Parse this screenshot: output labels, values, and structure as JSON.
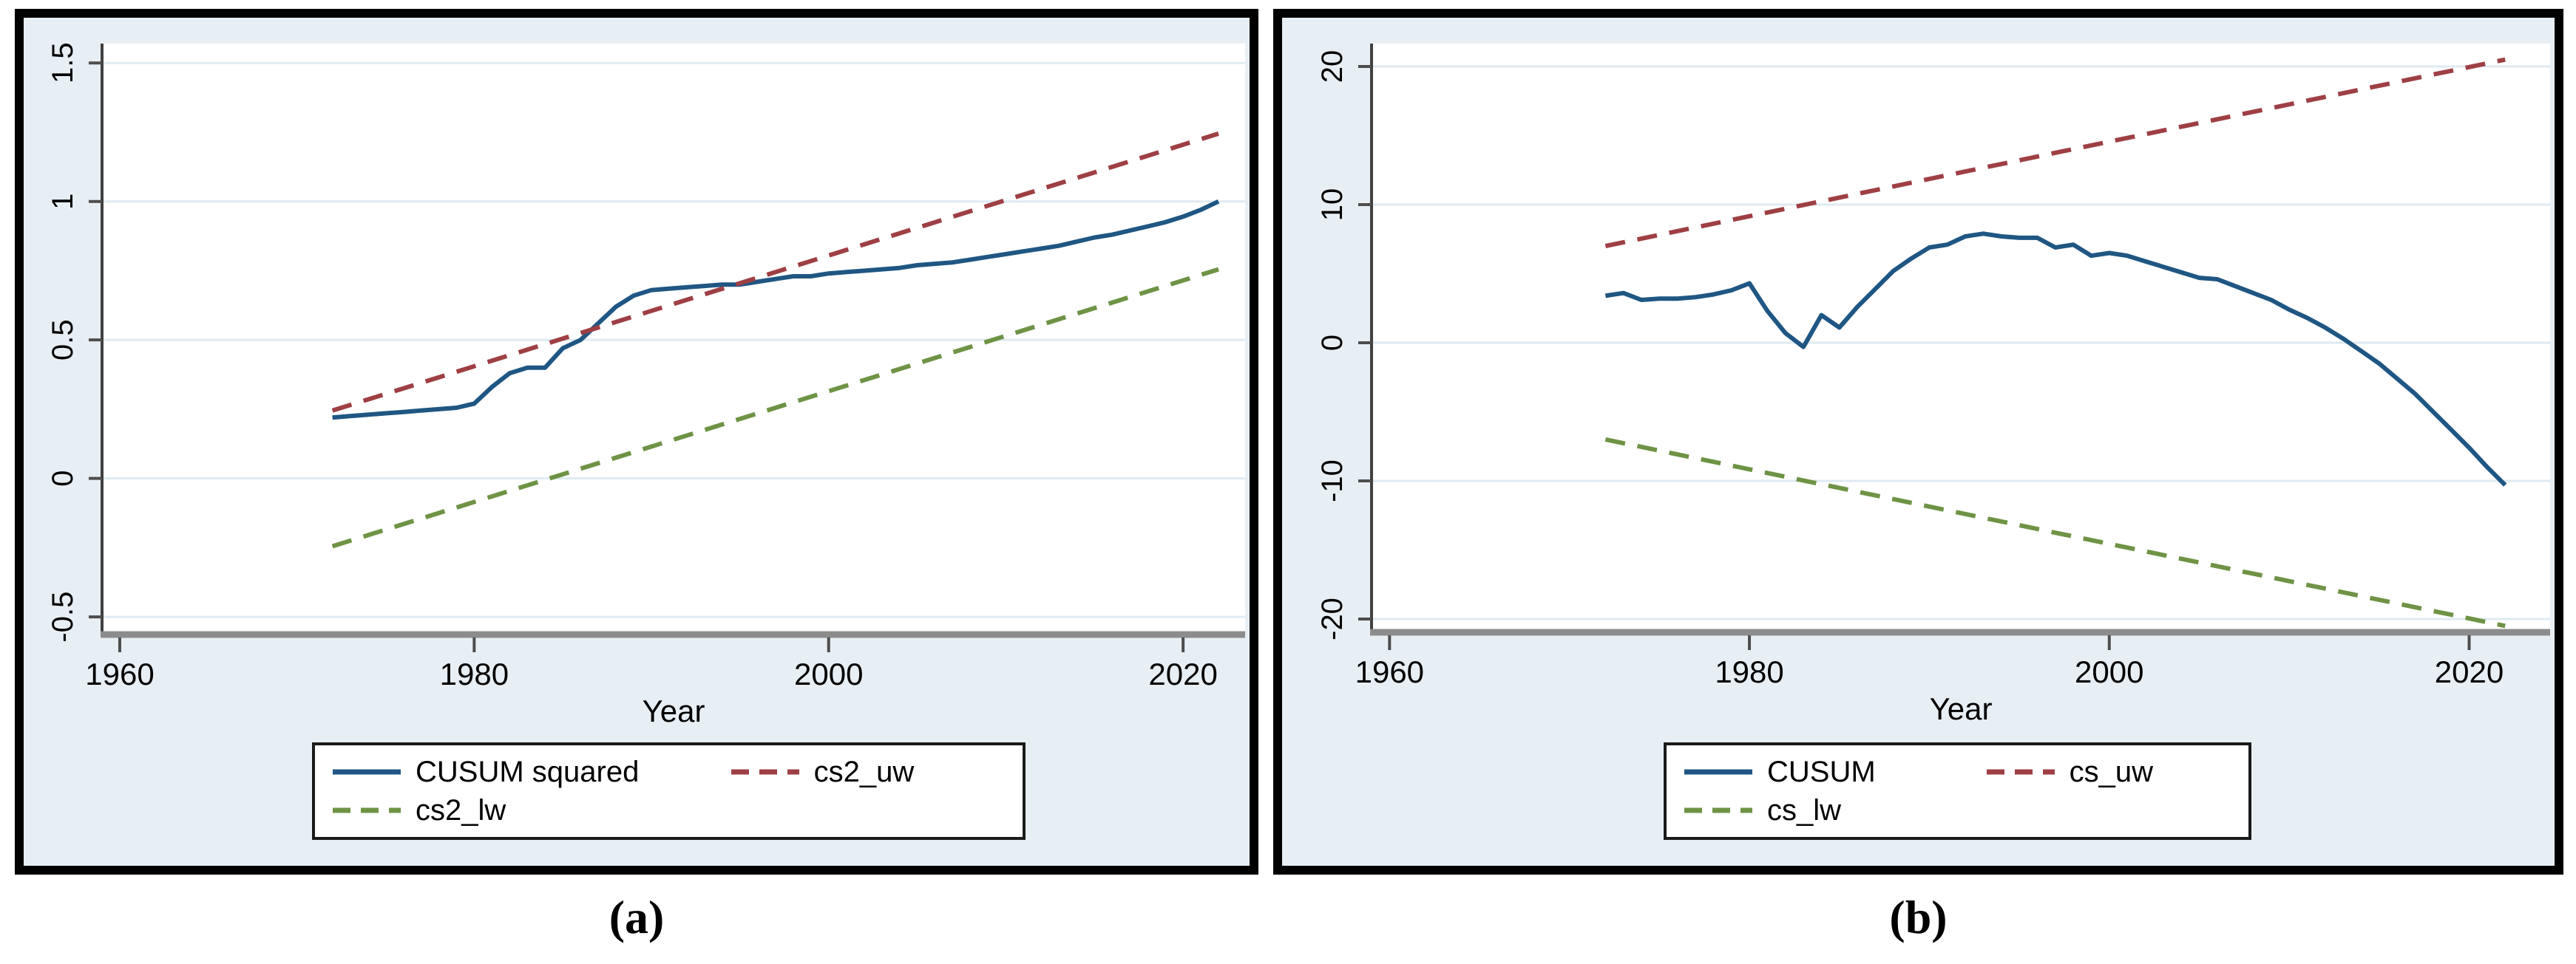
{
  "figure": {
    "captions": {
      "a": "(a)",
      "b": "(b)"
    }
  },
  "colors": {
    "cusum_line": "#1f5683",
    "upper_bound": "#9e3f44",
    "lower_bound": "#6e9345",
    "chart_bg": "#e8eff4",
    "plot_bg": "#ffffff",
    "grid": "#dfeaf2",
    "axis_dark": "#404040",
    "axis_gray": "#8c8c8c",
    "tick": "#4d4d4d"
  },
  "chart_data": [
    {
      "id": "a",
      "type": "line",
      "title": "",
      "xlabel": "Year",
      "ylabel": "",
      "xlim": [
        1959,
        2023.5
      ],
      "ylim": [
        -0.553,
        1.57
      ],
      "xtick_values": [
        1960,
        1980,
        2000,
        2020
      ],
      "xtick_labels": [
        "1960",
        "1980",
        "2000",
        "2020"
      ],
      "ytick_values": [
        -0.5,
        0,
        0.5,
        1,
        1.5
      ],
      "ytick_labels": [
        "-0.5",
        "0",
        "0.5",
        "1",
        "1.5"
      ],
      "grid": "horizontal",
      "legend_position": "bottom",
      "years": [
        1972,
        1973,
        1974,
        1975,
        1976,
        1977,
        1978,
        1979,
        1980,
        1981,
        1982,
        1983,
        1984,
        1985,
        1986,
        1987,
        1988,
        1989,
        1990,
        1991,
        1992,
        1993,
        1994,
        1995,
        1996,
        1997,
        1998,
        1999,
        2000,
        2001,
        2002,
        2003,
        2004,
        2005,
        2006,
        2007,
        2008,
        2009,
        2010,
        2011,
        2012,
        2013,
        2014,
        2015,
        2016,
        2017,
        2018,
        2019,
        2020,
        2021,
        2022
      ],
      "series": [
        {
          "name": "CUSUM squared",
          "color_key": "cusum_line",
          "dash": "solid",
          "x_ref": "years",
          "y": [
            0.22,
            0.225,
            0.23,
            0.235,
            0.24,
            0.245,
            0.25,
            0.255,
            0.27,
            0.33,
            0.38,
            0.4,
            0.4,
            0.47,
            0.5,
            0.56,
            0.62,
            0.66,
            0.68,
            0.685,
            0.69,
            0.695,
            0.7,
            0.7,
            0.71,
            0.72,
            0.73,
            0.73,
            0.74,
            0.745,
            0.75,
            0.755,
            0.76,
            0.77,
            0.775,
            0.78,
            0.79,
            0.8,
            0.81,
            0.82,
            0.83,
            0.84,
            0.855,
            0.87,
            0.88,
            0.895,
            0.91,
            0.925,
            0.945,
            0.97,
            1.0
          ]
        },
        {
          "name": "cs2_uw",
          "color_key": "upper_bound",
          "dash": "dashed",
          "x": [
            1972,
            2022
          ],
          "y": [
            0.245,
            1.245
          ]
        },
        {
          "name": "cs2_lw",
          "color_key": "lower_bound",
          "dash": "dashed",
          "x": [
            1972,
            2022
          ],
          "y": [
            -0.245,
            0.755
          ]
        }
      ]
    },
    {
      "id": "b",
      "type": "line",
      "title": "",
      "xlabel": "Year",
      "ylabel": "",
      "xlim": [
        1959,
        2024.5
      ],
      "ylim": [
        -20.75,
        21.66
      ],
      "xtick_values": [
        1960,
        1980,
        2000,
        2020
      ],
      "xtick_labels": [
        "1960",
        "1980",
        "2000",
        "2020"
      ],
      "ytick_values": [
        -20,
        -10,
        0,
        10,
        20
      ],
      "ytick_labels": [
        "-20",
        "-10",
        "0",
        "10",
        "20"
      ],
      "grid": "horizontal",
      "legend_position": "bottom",
      "years": [
        1972,
        1973,
        1974,
        1975,
        1976,
        1977,
        1978,
        1979,
        1980,
        1981,
        1982,
        1983,
        1984,
        1985,
        1986,
        1987,
        1988,
        1989,
        1990,
        1991,
        1992,
        1993,
        1994,
        1995,
        1996,
        1997,
        1998,
        1999,
        2000,
        2001,
        2002,
        2003,
        2004,
        2005,
        2006,
        2007,
        2008,
        2009,
        2010,
        2011,
        2012,
        2013,
        2014,
        2015,
        2016,
        2017,
        2018,
        2019,
        2020,
        2021,
        2022
      ],
      "series": [
        {
          "name": "CUSUM",
          "color_key": "cusum_line",
          "dash": "solid",
          "x_ref": "years",
          "y": [
            3.4,
            3.6,
            3.1,
            3.2,
            3.2,
            3.3,
            3.5,
            3.8,
            4.3,
            2.3,
            0.7,
            -0.3,
            2.0,
            1.1,
            2.6,
            3.9,
            5.2,
            6.1,
            6.9,
            7.1,
            7.7,
            7.9,
            7.7,
            7.6,
            7.6,
            6.9,
            7.1,
            6.3,
            6.5,
            6.3,
            5.9,
            5.5,
            5.1,
            4.7,
            4.6,
            4.1,
            3.6,
            3.1,
            2.4,
            1.8,
            1.1,
            0.3,
            -0.6,
            -1.5,
            -2.6,
            -3.7,
            -5.0,
            -6.3,
            -7.6,
            -9.0,
            -10.3
          ]
        },
        {
          "name": "cs_uw",
          "color_key": "upper_bound",
          "dash": "dashed",
          "x": [
            1972,
            2022
          ],
          "y": [
            7.0,
            20.5
          ]
        },
        {
          "name": "cs_lw",
          "color_key": "lower_bound",
          "dash": "dashed",
          "x": [
            1972,
            2022
          ],
          "y": [
            -7.0,
            -20.5
          ]
        }
      ]
    }
  ]
}
